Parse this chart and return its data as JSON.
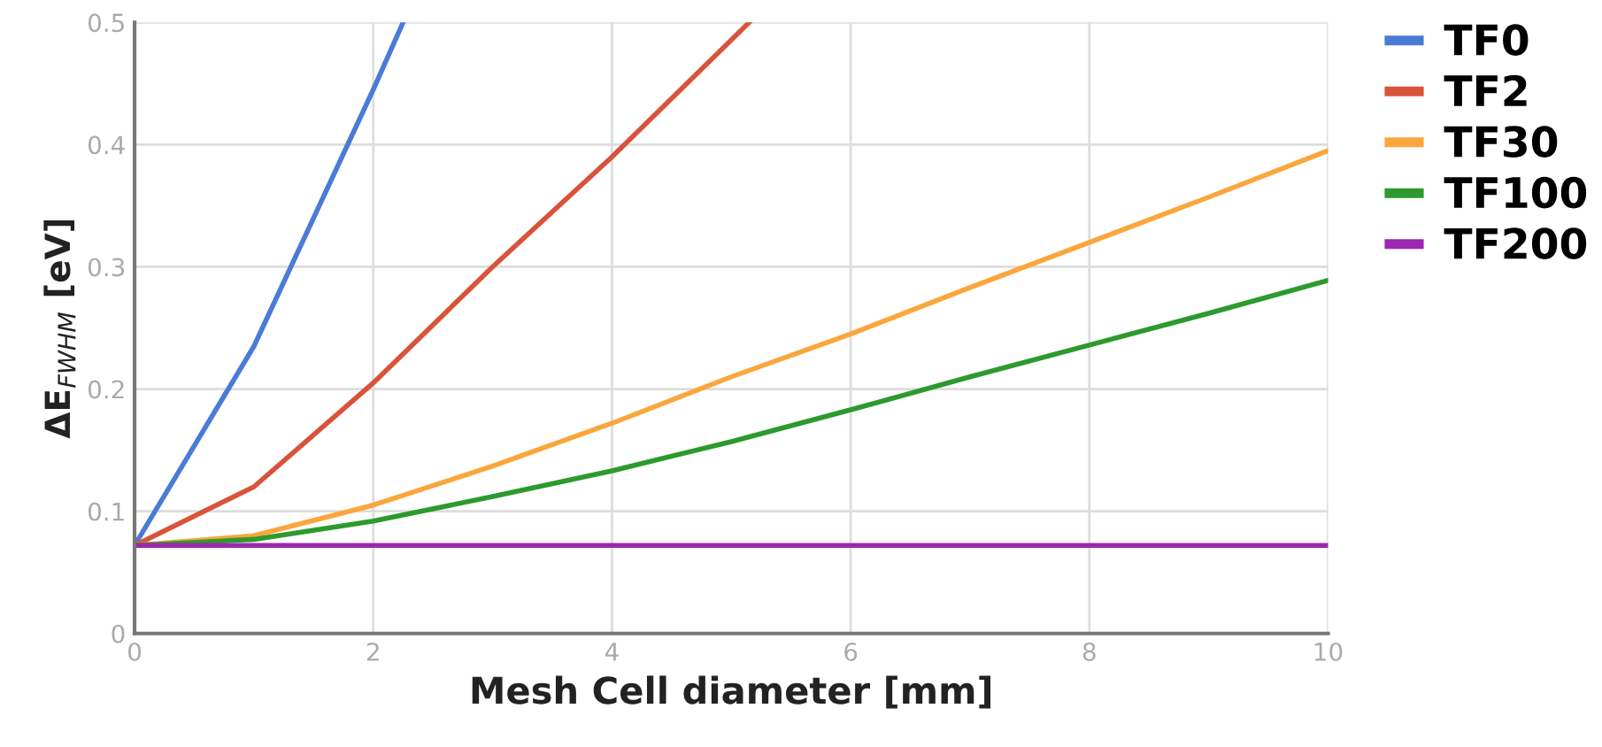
{
  "chart_data": {
    "type": "line",
    "xlabel": "Mesh Cell diameter [mm]",
    "ylabel": "ΔE$_{FWHM}$ [eV]",
    "xlim": [
      0,
      10
    ],
    "xticks": [
      0,
      2,
      4,
      6,
      8,
      10
    ],
    "ylim": [
      0,
      0.5
    ],
    "yticks": [
      0,
      0.1,
      0.2,
      0.3,
      0.4,
      0.5
    ],
    "grid": true,
    "legend": "top right",
    "series": [
      {
        "name": "TF0",
        "color": "#4a7bd6",
        "x": [
          0,
          1,
          2,
          2.25
        ],
        "values": [
          0.072,
          0.235,
          0.445,
          0.5
        ]
      },
      {
        "name": "TF2",
        "color": "#d9533a",
        "x": [
          0,
          1,
          2,
          3,
          4,
          5.15
        ],
        "values": [
          0.072,
          0.12,
          0.205,
          0.3,
          0.39,
          0.5
        ]
      },
      {
        "name": "TF30",
        "color": "#fba63c",
        "x": [
          0,
          1,
          2,
          3,
          4,
          5,
          6,
          7,
          8,
          9,
          10
        ],
        "values": [
          0.072,
          0.08,
          0.105,
          0.137,
          0.172,
          0.21,
          0.245,
          0.283,
          0.32,
          0.357,
          0.395
        ]
      },
      {
        "name": "TF100",
        "color": "#2c9a2c",
        "x": [
          0,
          1,
          2,
          3,
          4,
          5,
          6,
          7,
          8,
          9,
          10
        ],
        "values": [
          0.072,
          0.077,
          0.092,
          0.112,
          0.133,
          0.157,
          0.183,
          0.21,
          0.236,
          0.262,
          0.289
        ]
      },
      {
        "name": "TF200",
        "color": "#9c27b0",
        "x": [
          0,
          10
        ],
        "values": [
          0.072,
          0.072
        ]
      }
    ]
  }
}
